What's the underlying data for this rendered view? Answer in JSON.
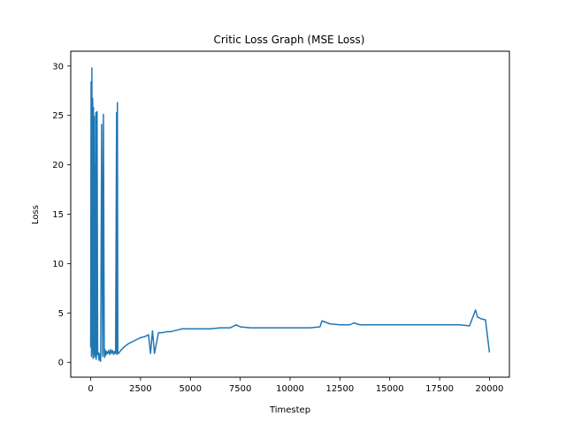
{
  "chart_data": {
    "type": "line",
    "title": "Critic Loss Graph (MSE Loss)",
    "xlabel": "Timestep",
    "ylabel": "Loss",
    "xlim": [
      -1000,
      21000
    ],
    "ylim": [
      -1.5,
      31.5
    ],
    "xticks": [
      0,
      2500,
      5000,
      7500,
      10000,
      12500,
      15000,
      17500,
      20000
    ],
    "xtick_labels": [
      "0",
      "2500",
      "5000",
      "7500",
      "10000",
      "12500",
      "15000",
      "17500",
      "20000"
    ],
    "yticks": [
      0,
      5,
      10,
      15,
      20,
      25,
      30
    ],
    "ytick_labels": [
      "0",
      "5",
      "10",
      "15",
      "20",
      "25",
      "30"
    ],
    "grid": false,
    "legend": "none",
    "color": "#1f77b4",
    "series": [
      {
        "x": [
          0,
          20,
          40,
          60,
          80,
          100,
          120,
          140,
          160,
          180,
          200,
          220,
          240,
          260,
          280,
          300,
          320,
          350,
          380,
          420,
          460,
          500,
          550,
          600,
          640,
          680,
          700,
          720,
          760,
          800,
          850,
          900,
          950,
          1000,
          1050,
          1100,
          1150,
          1200,
          1250,
          1300,
          1320,
          1340,
          1360,
          1400,
          1500,
          1700,
          1900,
          2100,
          2300,
          2500,
          2700,
          2900,
          3000,
          3100,
          3200,
          3400,
          3600,
          3800,
          4000,
          4200,
          4400,
          4600,
          4800,
          5000,
          5500,
          6000,
          6500,
          7000,
          7300,
          7500,
          8000,
          8500,
          9000,
          9500,
          10000,
          10500,
          11000,
          11500,
          11600,
          12000,
          12500,
          13000,
          13200,
          13500,
          14000,
          14500,
          15000,
          15500,
          16000,
          16500,
          17000,
          17500,
          18000,
          18500,
          19000,
          19300,
          19400,
          19600,
          19800,
          20000
        ],
        "y": [
          1.5,
          28.4,
          0.6,
          29.8,
          1.0,
          26.7,
          0.4,
          25.8,
          0.8,
          24.9,
          0.5,
          20.0,
          0.7,
          25.3,
          0.3,
          1.2,
          25.4,
          0.8,
          1.0,
          0.2,
          0.9,
          0.1,
          24.1,
          0.6,
          25.1,
          1.0,
          0.5,
          1.3,
          0.7,
          1.1,
          0.9,
          1.2,
          0.8,
          1.3,
          0.9,
          1.2,
          0.8,
          1.1,
          0.9,
          25.3,
          0.8,
          26.3,
          1.0,
          0.9,
          1.2,
          1.6,
          1.9,
          2.1,
          2.3,
          2.5,
          2.6,
          2.8,
          0.9,
          3.2,
          0.9,
          3.0,
          3.0,
          3.1,
          3.1,
          3.2,
          3.3,
          3.4,
          3.4,
          3.4,
          3.4,
          3.4,
          3.5,
          3.5,
          3.8,
          3.6,
          3.5,
          3.5,
          3.5,
          3.5,
          3.5,
          3.5,
          3.5,
          3.6,
          4.2,
          3.9,
          3.8,
          3.8,
          4.0,
          3.8,
          3.8,
          3.8,
          3.8,
          3.8,
          3.8,
          3.8,
          3.8,
          3.8,
          3.8,
          3.8,
          3.7,
          5.3,
          4.6,
          4.4,
          4.3,
          1.0
        ]
      }
    ]
  }
}
